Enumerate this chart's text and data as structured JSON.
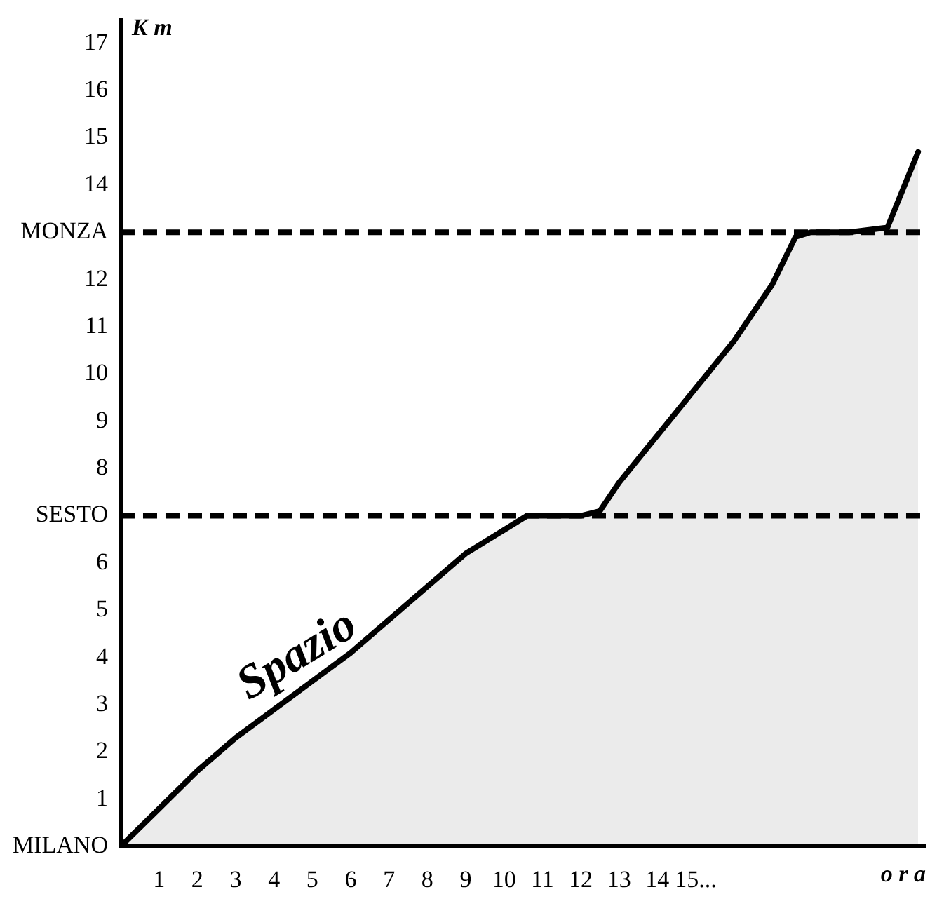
{
  "chart_data": {
    "type": "area",
    "xlabel": "o r a",
    "ylabel": "K m",
    "x": [
      0,
      1,
      2,
      3,
      4,
      5,
      6,
      7,
      8,
      9,
      10,
      10.6,
      11,
      12,
      12.5,
      13,
      14,
      15,
      16,
      17,
      17.6,
      18,
      19,
      20,
      20.8
    ],
    "series": [
      {
        "color": "#000000",
        "values": [
          0,
          0.8,
          1.6,
          2.3,
          2.9,
          3.5,
          4.1,
          4.8,
          5.5,
          6.2,
          6.7,
          7,
          7,
          7,
          7.1,
          7.7,
          8.7,
          9.7,
          10.7,
          11.9,
          12.9,
          13,
          13,
          13.1,
          14.7
        ]
      }
    ],
    "xlim": [
      0,
      21
    ],
    "xticks": [
      1,
      2,
      3,
      4,
      5,
      6,
      7,
      8,
      9,
      10,
      11,
      12,
      13,
      14,
      {
        "value": 15,
        "label": "15..."
      }
    ],
    "ylim": [
      0,
      17.5
    ],
    "yticks": [
      {
        "value": 0,
        "label": "MILANO"
      },
      1,
      2,
      3,
      4,
      5,
      6,
      {
        "value": 7,
        "label": "SESTO"
      },
      8,
      9,
      10,
      11,
      12,
      {
        "value": 13,
        "label": "MONZA"
      },
      14,
      15,
      16,
      17
    ],
    "ref_lines": [
      {
        "axis": "y",
        "value": 7,
        "line_style": "dashed",
        "color": "#000000"
      },
      {
        "axis": "y",
        "value": 13,
        "line_style": "dashed",
        "color": "#000000"
      }
    ],
    "annotations": [
      "Spazio"
    ],
    "grid": false,
    "legend": false,
    "marker": "none",
    "line_style": "solid"
  }
}
